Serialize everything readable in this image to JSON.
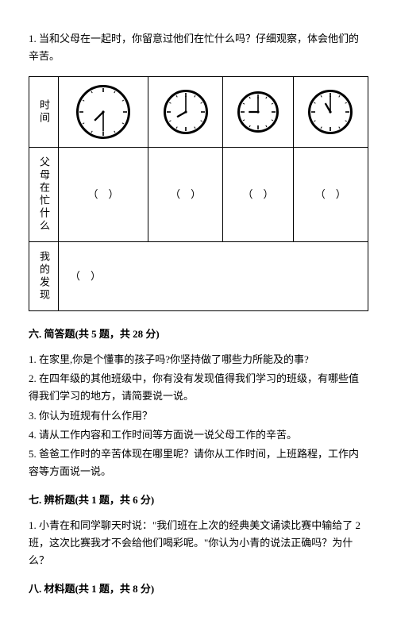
{
  "q1": {
    "number": "1.",
    "text": "当和父母在一起时，你留意过他们在忙什么吗？仔细观察，体会他们的辛苦。"
  },
  "table": {
    "row_labels": [
      "时间",
      "父母在忙什么",
      "我的发现"
    ],
    "paren_open": "（",
    "paren_close": "）",
    "clocks": [
      {
        "size": 68,
        "hour": 7,
        "minute": 30
      },
      {
        "size": 56,
        "hour": 8,
        "minute": 0
      },
      {
        "size": 52,
        "hour": 9,
        "minute": 0
      },
      {
        "size": 56,
        "hour": 11,
        "minute": 0
      }
    ],
    "clock_style": {
      "face_fill": "#ffffff",
      "stroke": "#000000",
      "rim_width": 3,
      "tick_len_major": 5,
      "tick_len_minor": 2.5,
      "hour_hand_ratio": 0.45,
      "minute_hand_ratio": 0.72
    }
  },
  "section6": {
    "title": "六. 简答题(共 5 题，共 28 分)",
    "items": [
      "1. 在家里,你是个懂事的孩子吗?你坚持做了哪些力所能及的事?",
      "2. 在四年级的其他班级中，你有没有发现值得我们学习的班级，有哪些值得我们学习的地方，请简要说一说。",
      "3. 你认为班规有什么作用？",
      "4. 请从工作内容和工作时间等方面说一说父母工作的辛苦。",
      "5. 爸爸工作时的辛苦体现在哪里呢？请你从工作时间，上班路程，工作内容等方面说一说。"
    ]
  },
  "section7": {
    "title": "七. 辨析题(共 1 题，共 6 分)",
    "item": "1. 小青在和同学聊天时说：\"我们班在上次的经典美文诵读比赛中输给了 2 班，这次比赛我才不会给他们喝彩呢。\"你认为小青的说法正确吗？为什么？"
  },
  "section8": {
    "title": "八. 材料题(共 1 题，共 8 分)"
  }
}
